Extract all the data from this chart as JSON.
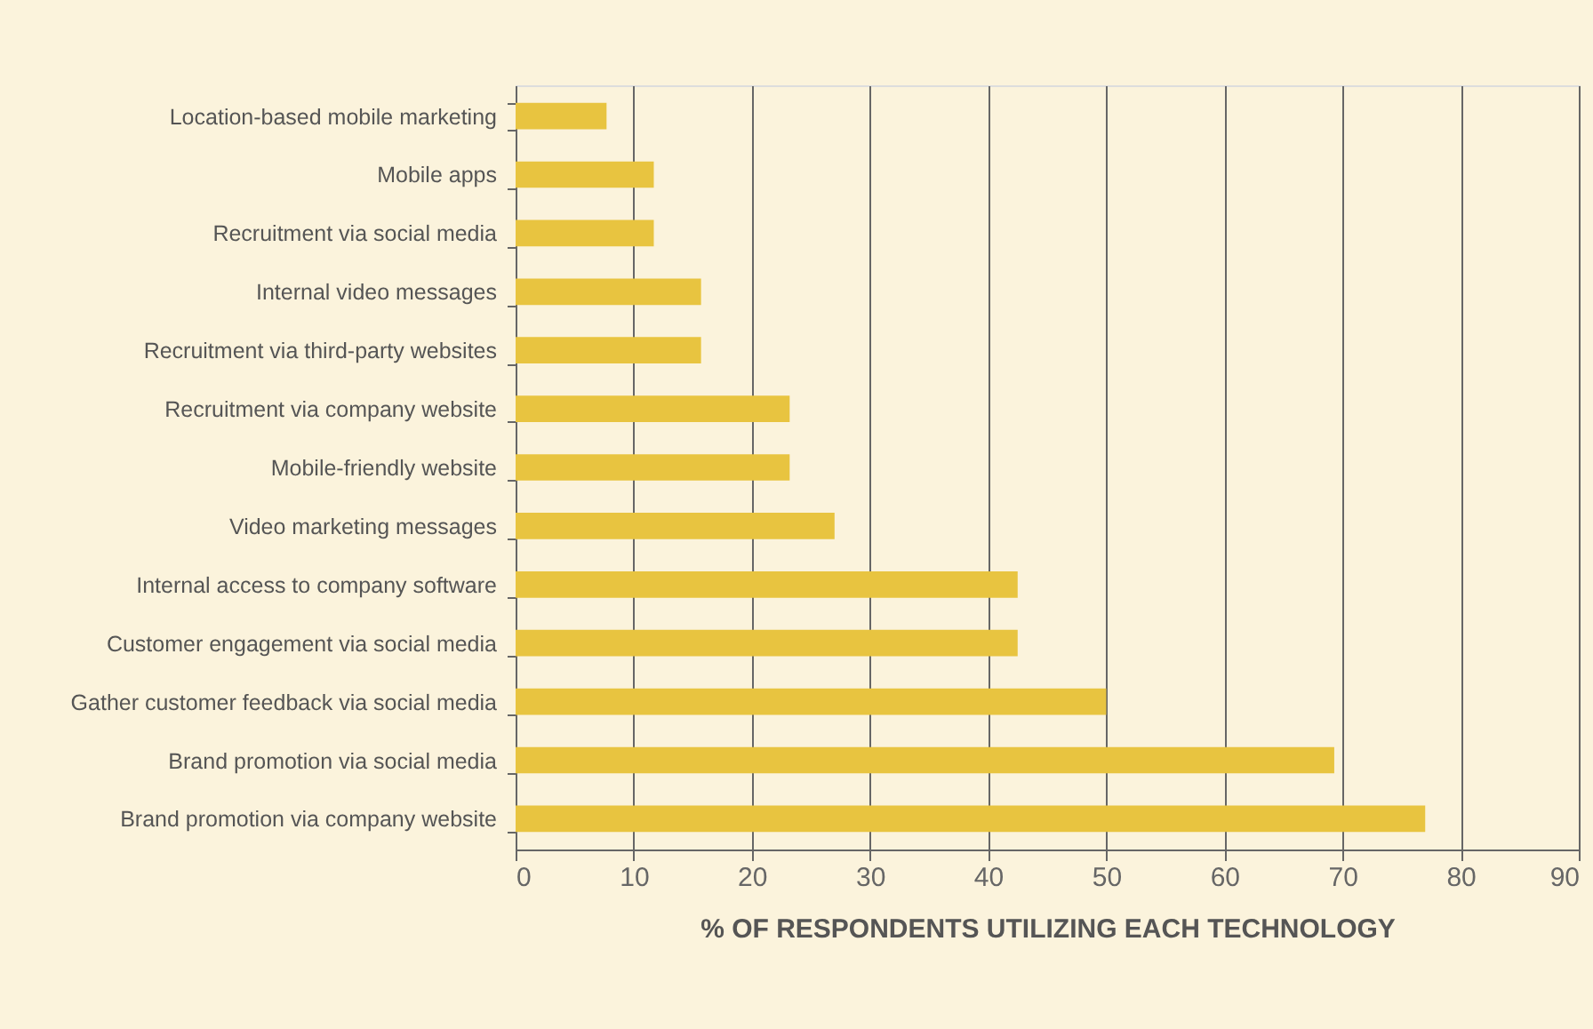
{
  "chart_data": {
    "type": "bar",
    "orientation": "horizontal",
    "xlabel": "% OF RESPONDENTS UTILIZING EACH TECHNOLOGY",
    "categories": [
      "Location-based mobile marketing",
      "Mobile apps",
      "Recruitment via social media",
      "Internal video messages",
      "Recruitment via third-party websites",
      "Recruitment via company website",
      "Mobile-friendly website",
      "Video marketing messages",
      "Internal access to company software",
      "Customer engagement via social media",
      "Gather customer feedback via social media",
      "Brand promotion via social media",
      "Brand promotion via company website"
    ],
    "values": [
      7.7,
      11.7,
      11.7,
      15.7,
      15.7,
      23.2,
      23.2,
      27,
      42.5,
      42.5,
      50,
      69.3,
      77
    ],
    "color": "#e8c440",
    "xlim": [
      0,
      90
    ],
    "xticks": [
      0,
      10,
      20,
      30,
      40,
      50,
      60,
      70,
      80,
      90
    ],
    "grid": "x"
  }
}
